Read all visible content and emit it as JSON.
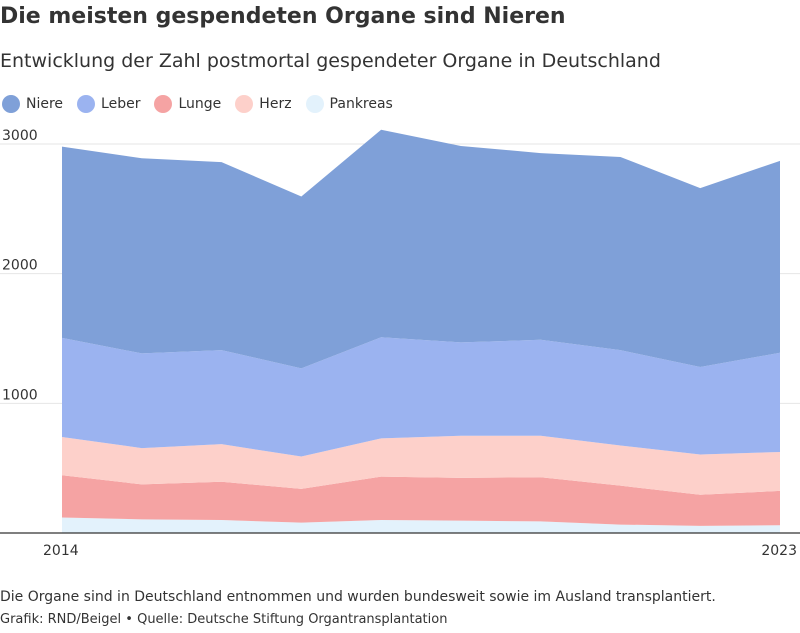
{
  "header": {
    "title": "Die meisten gespendeten Organe sind Nieren",
    "subtitle": "Entwicklung der Zahl postmortal gespendeter Organe in Deutschland"
  },
  "footer": {
    "note": "Die Organe sind in Deutschland entnommen und wurden bundesweit sowie im Ausland transplantiert.",
    "source": "Grafik: RND/Beigel • Quelle: Deutsche Stiftung Organtransplantation"
  },
  "chart_data": {
    "type": "area",
    "stacked": true,
    "title": "Die meisten gespendeten Organe sind Nieren",
    "subtitle": "Entwicklung der Zahl postmortal gespendeter Organe in Deutschland",
    "xlabel": "",
    "ylabel": "",
    "x": [
      2014,
      2015,
      2016,
      2017,
      2018,
      2019,
      2020,
      2021,
      2022,
      2023
    ],
    "x_tick_labels": [
      "2014",
      "2023"
    ],
    "y_ticks": [
      1000,
      2000,
      3000
    ],
    "y_tick_labels": [
      "1000",
      "2000",
      "3000"
    ],
    "ylim": [
      0,
      3000
    ],
    "grid": true,
    "legend_placement": "top-left",
    "series": [
      {
        "name": "Pankreas",
        "color": "#e3f2fc",
        "values": [
          120,
          105,
          100,
          80,
          100,
          95,
          90,
          65,
          55,
          60
        ]
      },
      {
        "name": "Lunge",
        "color": "#f5a3a3",
        "values": [
          325,
          270,
          295,
          260,
          335,
          330,
          340,
          300,
          240,
          265
        ]
      },
      {
        "name": "Herz",
        "color": "#fdd0ca",
        "values": [
          295,
          280,
          290,
          250,
          295,
          325,
          320,
          310,
          310,
          300
        ]
      },
      {
        "name": "Leber",
        "color": "#9bb3f0",
        "values": [
          765,
          730,
          725,
          680,
          780,
          720,
          740,
          735,
          675,
          765
        ]
      },
      {
        "name": "Niere",
        "color": "#7fa0d8",
        "values": [
          1475,
          1505,
          1450,
          1325,
          1600,
          1515,
          1440,
          1490,
          1380,
          1480
        ]
      }
    ],
    "legend_order": [
      "Niere",
      "Leber",
      "Lunge",
      "Herz",
      "Pankreas"
    ]
  }
}
